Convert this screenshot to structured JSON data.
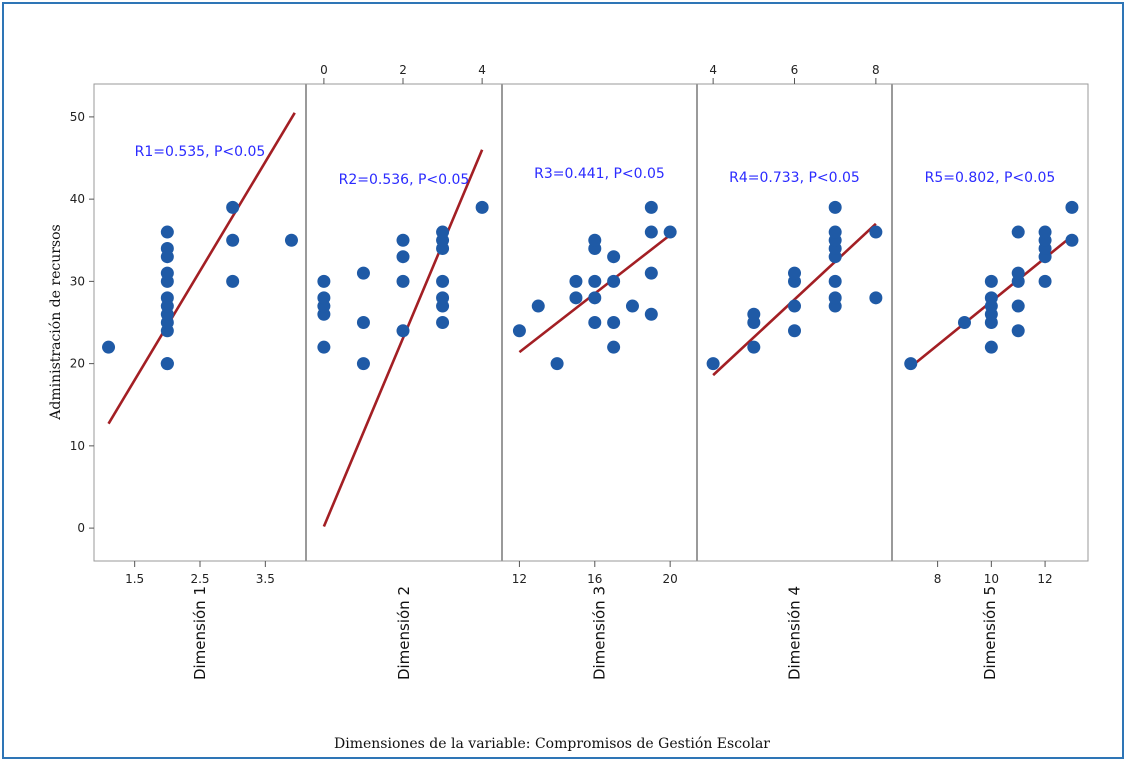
{
  "chart_data": {
    "type": "scatter",
    "title": "",
    "xlabel": "Dimensiones de la variable: Compromisos de Gestión Escolar",
    "ylabel": "Administración de recursos",
    "ylim": [
      -4,
      54
    ],
    "yticks": [
      "0",
      "10",
      "20",
      "30",
      "40",
      "50"
    ],
    "grid": false,
    "colors": {
      "point": "#1f5aa6",
      "line": "#a31f24",
      "annotation": "#2b2bff",
      "frame": "#2e75b6"
    },
    "panels": [
      {
        "name": "Dimensión 1",
        "annotation": "R1=0.535, P<0.05",
        "xlim": [
          1.0,
          4.0
        ],
        "ticks": [
          1.5,
          2.5,
          3.5
        ],
        "tick_labels": [
          "1.5",
          "2.5",
          "3.5"
        ],
        "tick_position": "bottom",
        "points": [
          [
            1.1,
            22
          ],
          [
            2.0,
            20
          ],
          [
            2.0,
            20
          ],
          [
            2.0,
            24
          ],
          [
            2.0,
            25
          ],
          [
            2.0,
            26
          ],
          [
            2.0,
            27
          ],
          [
            2.0,
            28
          ],
          [
            2.0,
            30
          ],
          [
            2.0,
            31
          ],
          [
            2.0,
            33
          ],
          [
            2.0,
            34
          ],
          [
            2.0,
            36
          ],
          [
            3.0,
            30
          ],
          [
            3.0,
            35
          ],
          [
            3.0,
            39
          ],
          [
            3.9,
            35
          ]
        ],
        "fit": {
          "x": [
            1.1,
            3.95
          ],
          "y": [
            12.7,
            50.5
          ]
        }
      },
      {
        "name": "Dimensión 2",
        "annotation": "R2=0.536, P<0.05",
        "xlim": [
          -0.25,
          4.3
        ],
        "ticks": [
          0,
          2,
          4
        ],
        "tick_labels": [
          "0",
          "2",
          "4"
        ],
        "tick_position": "top",
        "points": [
          [
            0,
            22
          ],
          [
            0,
            26
          ],
          [
            0,
            27
          ],
          [
            0,
            28
          ],
          [
            0,
            30
          ],
          [
            1,
            20
          ],
          [
            1,
            25
          ],
          [
            1,
            31
          ],
          [
            2,
            24
          ],
          [
            2,
            30
          ],
          [
            2,
            33
          ],
          [
            2,
            35
          ],
          [
            3,
            25
          ],
          [
            3,
            27
          ],
          [
            3,
            28
          ],
          [
            3,
            30
          ],
          [
            3,
            34
          ],
          [
            3,
            35
          ],
          [
            3,
            36
          ],
          [
            4,
            39
          ]
        ],
        "fit": {
          "x": [
            0.0,
            4.0
          ],
          "y": [
            0.2,
            46
          ]
        }
      },
      {
        "name": "Dimensión 3",
        "annotation": "R3=0.441, P<0.05",
        "xlim": [
          11.5,
          21.0
        ],
        "ticks": [
          12,
          16,
          20
        ],
        "tick_labels": [
          "12",
          "16",
          "20"
        ],
        "tick_position": "bottom",
        "points": [
          [
            12,
            24
          ],
          [
            13,
            27
          ],
          [
            14,
            20
          ],
          [
            15,
            28
          ],
          [
            15,
            30
          ],
          [
            16,
            25
          ],
          [
            16,
            28
          ],
          [
            16,
            30
          ],
          [
            16,
            34
          ],
          [
            16,
            35
          ],
          [
            17,
            22
          ],
          [
            17,
            25
          ],
          [
            17,
            30
          ],
          [
            17,
            33
          ],
          [
            18,
            27
          ],
          [
            19,
            26
          ],
          [
            19,
            31
          ],
          [
            19,
            36
          ],
          [
            19,
            39
          ],
          [
            20,
            36
          ]
        ],
        "fit": {
          "x": [
            12.0,
            20.2
          ],
          "y": [
            21.4,
            36
          ]
        }
      },
      {
        "name": "Dimensión 4",
        "annotation": "R4=0.733, P<0.05",
        "xlim": [
          3.8,
          8.2
        ],
        "ticks": [
          4,
          6,
          8
        ],
        "tick_labels": [
          "4",
          "6",
          "8"
        ],
        "tick_position": "top",
        "points": [
          [
            4,
            20
          ],
          [
            5,
            22
          ],
          [
            5,
            25
          ],
          [
            5,
            26
          ],
          [
            6,
            24
          ],
          [
            6,
            27
          ],
          [
            6,
            30
          ],
          [
            6,
            31
          ],
          [
            7,
            27
          ],
          [
            7,
            28
          ],
          [
            7,
            30
          ],
          [
            7,
            33
          ],
          [
            7,
            34
          ],
          [
            7,
            35
          ],
          [
            7,
            36
          ],
          [
            7,
            39
          ],
          [
            8,
            28
          ],
          [
            8,
            36
          ]
        ],
        "fit": {
          "x": [
            4.0,
            8.0
          ],
          "y": [
            18.6,
            37
          ]
        }
      },
      {
        "name": "Dimensión 5",
        "annotation": "R5=0.802, P<0.05",
        "xlim": [
          6.6,
          13.3
        ],
        "ticks": [
          8,
          10,
          12
        ],
        "tick_labels": [
          "8",
          "10",
          "12"
        ],
        "tick_position": "bottom",
        "points": [
          [
            7,
            20
          ],
          [
            9,
            25
          ],
          [
            10,
            22
          ],
          [
            10,
            25
          ],
          [
            10,
            26
          ],
          [
            10,
            27
          ],
          [
            10,
            28
          ],
          [
            10,
            30
          ],
          [
            11,
            24
          ],
          [
            11,
            27
          ],
          [
            11,
            30
          ],
          [
            11,
            31
          ],
          [
            11,
            36
          ],
          [
            12,
            30
          ],
          [
            12,
            33
          ],
          [
            12,
            34
          ],
          [
            12,
            35
          ],
          [
            12,
            36
          ],
          [
            13,
            35
          ],
          [
            13,
            39
          ]
        ],
        "fit": {
          "x": [
            7.0,
            13.0
          ],
          "y": [
            19.6,
            35.5
          ]
        }
      }
    ]
  }
}
